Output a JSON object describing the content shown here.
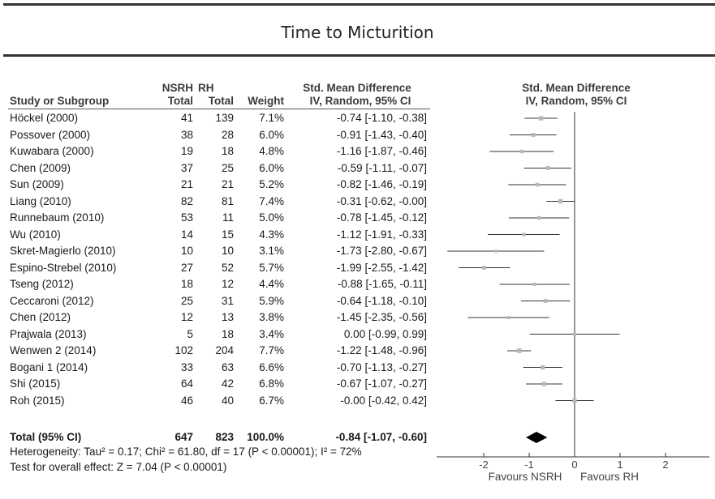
{
  "title": "Time to Micturition",
  "headers": {
    "study": "Study or Subgroup",
    "nsrh_top": "NSRH",
    "nsrh_bottom": "Total",
    "rh_top": "RH",
    "rh_bottom": "Total",
    "weight": "Weight",
    "smd_top": "Std. Mean Difference",
    "smd_bottom": "IV, Random, 95% CI",
    "plot_top": "Std. Mean Difference",
    "plot_bottom": "IV, Random, 95% CI"
  },
  "studies": [
    {
      "study": "Höckel (2000)",
      "nsrh": "41",
      "rh": "139",
      "weight": "7.1%",
      "ci": "-0.74 [-1.10, -0.38]"
    },
    {
      "study": "Possover (2000)",
      "nsrh": "38",
      "rh": "28",
      "weight": "6.0%",
      "ci": "-0.91 [-1.43, -0.40]"
    },
    {
      "study": "Kuwabara (2000)",
      "nsrh": "19",
      "rh": "18",
      "weight": "4.8%",
      "ci": "-1.16 [-1.87, -0.46]"
    },
    {
      "study": "Chen (2009)",
      "nsrh": "37",
      "rh": "25",
      "weight": "6.0%",
      "ci": "-0.59 [-1.11, -0.07]"
    },
    {
      "study": "Sun (2009)",
      "nsrh": "21",
      "rh": "21",
      "weight": "5.2%",
      "ci": "-0.82 [-1.46, -0.19]"
    },
    {
      "study": "Liang (2010)",
      "nsrh": "82",
      "rh": "81",
      "weight": "7.4%",
      "ci": "-0.31 [-0.62, -0.00]"
    },
    {
      "study": "Runnebaum (2010)",
      "nsrh": "53",
      "rh": "11",
      "weight": "5.0%",
      "ci": "-0.78 [-1.45, -0.12]"
    },
    {
      "study": "Wu (2010)",
      "nsrh": "14",
      "rh": "15",
      "weight": "4.3%",
      "ci": "-1.12 [-1.91, -0.33]"
    },
    {
      "study": "Skret-Magierlo (2010)",
      "nsrh": "10",
      "rh": "10",
      "weight": "3.1%",
      "ci": "-1.73 [-2.80, -0.67]"
    },
    {
      "study": "Espino-Strebel (2010)",
      "nsrh": "27",
      "rh": "52",
      "weight": "5.7%",
      "ci": "-1.99 [-2.55, -1.42]"
    },
    {
      "study": "Tseng (2012)",
      "nsrh": "18",
      "rh": "12",
      "weight": "4.4%",
      "ci": "-0.88 [-1.65, -0.11]"
    },
    {
      "study": "Ceccaroni (2012)",
      "nsrh": "25",
      "rh": "31",
      "weight": "5.9%",
      "ci": "-0.64 [-1.18, -0.10]"
    },
    {
      "study": "Chen (2012)",
      "nsrh": "12",
      "rh": "13",
      "weight": "3.8%",
      "ci": "-1.45 [-2.35, -0.56]"
    },
    {
      "study": "Prajwala (2013)",
      "nsrh": "5",
      "rh": "18",
      "weight": "3.4%",
      "ci": "0.00 [-0.99, 0.99]"
    },
    {
      "study": "Wenwen 2 (2014)",
      "nsrh": "102",
      "rh": "204",
      "weight": "7.7%",
      "ci": "-1.22 [-1.48, -0.96]"
    },
    {
      "study": "Bogani 1 (2014)",
      "nsrh": "33",
      "rh": "63",
      "weight": "6.6%",
      "ci": "-0.70 [-1.13, -0.27]"
    },
    {
      "study": "Shi (2015)",
      "nsrh": "64",
      "rh": "42",
      "weight": "6.8%",
      "ci": "-0.67 [-1.07, -0.27]"
    },
    {
      "study": "Roh (2015)",
      "nsrh": "46",
      "rh": "40",
      "weight": "6.7%",
      "ci": "-0.00 [-0.42, 0.42]"
    }
  ],
  "total": {
    "study": "Total (95% CI)",
    "nsrh": "647",
    "rh": "823",
    "weight": "100.0%",
    "ci": "-0.84 [-1.07, -0.60]"
  },
  "heterogeneity": "Heterogeneity: Tau² = 0.17; Chi² = 61.80, df = 17 (P < 0.00001); I² = 72%",
  "overall_effect": "Test for overall effect: Z = 7.04 (P < 0.00001)",
  "favours_left": "Favours NSRH",
  "favours_right": "Favours RH",
  "chart_data": {
    "type": "forest",
    "title": "Time to Micturition",
    "xlim": [
      -2,
      2
    ],
    "xticks": [
      "-2",
      "-1",
      "0",
      "1",
      "2"
    ],
    "points": [
      {
        "label": "Höckel (2000)",
        "est": -0.74,
        "lo": -1.1,
        "hi": -0.38,
        "weight": 7.1
      },
      {
        "label": "Possover (2000)",
        "est": -0.91,
        "lo": -1.43,
        "hi": -0.4,
        "weight": 6.0
      },
      {
        "label": "Kuwabara (2000)",
        "est": -1.16,
        "lo": -1.87,
        "hi": -0.46,
        "weight": 4.8
      },
      {
        "label": "Chen (2009)",
        "est": -0.59,
        "lo": -1.11,
        "hi": -0.07,
        "weight": 6.0
      },
      {
        "label": "Sun (2009)",
        "est": -0.82,
        "lo": -1.46,
        "hi": -0.19,
        "weight": 5.2
      },
      {
        "label": "Liang (2010)",
        "est": -0.31,
        "lo": -0.62,
        "hi": 0.0,
        "weight": 7.4
      },
      {
        "label": "Runnebaum (2010)",
        "est": -0.78,
        "lo": -1.45,
        "hi": -0.12,
        "weight": 5.0
      },
      {
        "label": "Wu (2010)",
        "est": -1.12,
        "lo": -1.91,
        "hi": -0.33,
        "weight": 4.3
      },
      {
        "label": "Skret-Magierlo (2010)",
        "est": -1.73,
        "lo": -2.8,
        "hi": -0.67,
        "weight": 3.1
      },
      {
        "label": "Espino-Strebel (2010)",
        "est": -1.99,
        "lo": -2.55,
        "hi": -1.42,
        "weight": 5.7
      },
      {
        "label": "Tseng (2012)",
        "est": -0.88,
        "lo": -1.65,
        "hi": -0.11,
        "weight": 4.4
      },
      {
        "label": "Ceccaroni (2012)",
        "est": -0.64,
        "lo": -1.18,
        "hi": -0.1,
        "weight": 5.9
      },
      {
        "label": "Chen (2012)",
        "est": -1.45,
        "lo": -2.35,
        "hi": -0.56,
        "weight": 3.8
      },
      {
        "label": "Prajwala (2013)",
        "est": 0.0,
        "lo": -0.99,
        "hi": 0.99,
        "weight": 3.4
      },
      {
        "label": "Wenwen 2 (2014)",
        "est": -1.22,
        "lo": -1.48,
        "hi": -0.96,
        "weight": 7.7
      },
      {
        "label": "Bogani 1 (2014)",
        "est": -0.7,
        "lo": -1.13,
        "hi": -0.27,
        "weight": 6.6
      },
      {
        "label": "Shi (2015)",
        "est": -0.67,
        "lo": -1.07,
        "hi": -0.27,
        "weight": 6.8
      },
      {
        "label": "Roh (2015)",
        "est": -0.0,
        "lo": -0.42,
        "hi": 0.42,
        "weight": 6.7
      }
    ],
    "summary": {
      "label": "Total (95% CI)",
      "est": -0.84,
      "lo": -1.07,
      "hi": -0.6
    },
    "colors": {
      "marker": "#b8b8b8",
      "line": "#333333",
      "diamond": "#000000"
    }
  }
}
